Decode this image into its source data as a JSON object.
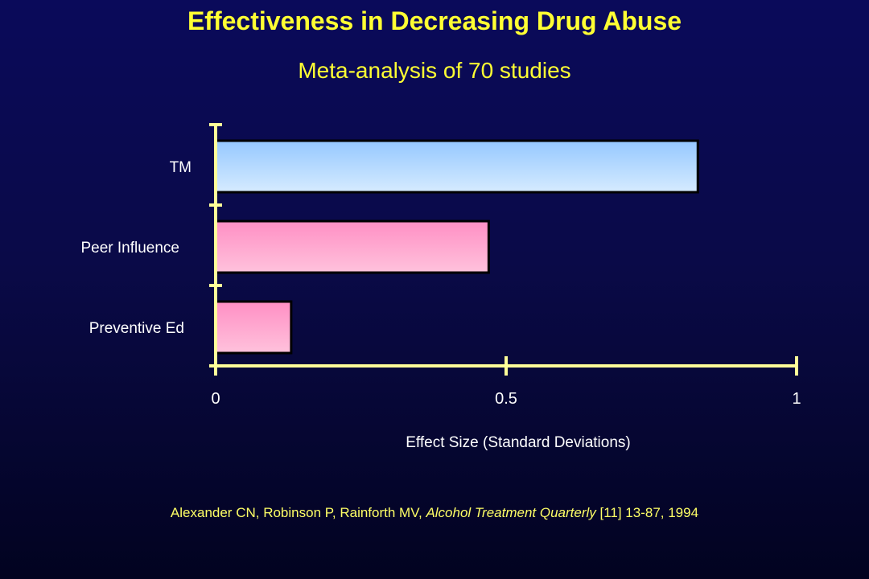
{
  "slide": {
    "title": "Effectiveness in Decreasing Drug Abuse",
    "subtitle": "Meta-analysis of 70 studies",
    "citation": {
      "authors": "Alexander CN, Robinson P, Rainforth MV, ",
      "journal": "Alcohol Treatment Quarterly",
      "details": " [11] 13-87, 1994"
    }
  },
  "chart_data": {
    "type": "bar",
    "orientation": "horizontal",
    "categories": [
      "TM",
      "Peer Influence",
      "Preventive Ed"
    ],
    "values": [
      0.83,
      0.47,
      0.13
    ],
    "xlabel": "Effect Size (Standard Deviations)",
    "xlim": [
      0,
      1
    ],
    "xticks": [
      0,
      0.5,
      1
    ],
    "xtick_labels": [
      "0",
      "0.5",
      "1"
    ],
    "grid": false,
    "legend": "none",
    "colors": {
      "bars": [
        "#a8d4ff",
        "#ff9fcc",
        "#ff9fcc"
      ],
      "bar_edge": "#000000",
      "axis": "#ffff99",
      "title": "#ffff33"
    }
  }
}
